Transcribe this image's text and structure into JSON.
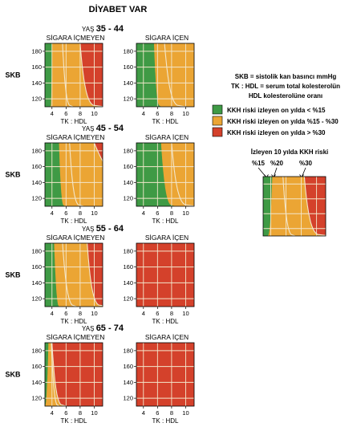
{
  "title": "DİYABET VAR",
  "age_prefix": "YAŞ",
  "smoking_labels": {
    "non_smoker": "SİGARA İÇMEYEN",
    "smoker": "SİGARA İÇEN"
  },
  "y_axis_label": "SKB",
  "x_axis_label": "TK : HDL",
  "notes": [
    "SKB = sistolik kan basıncı mmHg",
    "TK : HDL = serum total kolesterolün",
    "HDL kolesterolüne oranı"
  ],
  "legend": [
    {
      "label": "KKH riski izleyen on yılda < %15",
      "color": "#3f9a45"
    },
    {
      "label": "KKH riski izleyen on yılda  %15 - %30",
      "color": "#eba534"
    },
    {
      "label": "KKH riski izleyen on yılda > %30",
      "color": "#d4412b"
    }
  ],
  "example": {
    "title": "İzleyen 10 yılda KKH riski",
    "labels": [
      "%15",
      "%20",
      "%30"
    ]
  },
  "colors": {
    "low": "#3f9a45",
    "mid": "#eba534",
    "high": "#d4412b",
    "line": "#f3e7cc"
  },
  "chart_data": {
    "type": "heatmap",
    "x_ticks": [
      4,
      6,
      8,
      10
    ],
    "y_ticks": [
      120,
      140,
      160,
      180
    ],
    "xlim": [
      3,
      11.2
    ],
    "ylim": [
      110,
      190
    ],
    "age_groups": [
      {
        "label": "35 - 44",
        "non_smoker": {
          "t15": [
            4.0,
            3.8,
            2.5
          ],
          "t20": [
            5.5,
            7.0,
            3.6
          ],
          "t30": [
            8.0,
            11.5,
            5.0
          ]
        },
        "smoker": {
          "t15": [
            5.5,
            6.5,
            3.2
          ],
          "t20": [
            7.0,
            10.0,
            4.2
          ],
          "t30": [
            11.5,
            30.0,
            6.0
          ]
        }
      },
      {
        "label": "45 - 54",
        "non_smoker": {
          "t15": [
            5.0,
            5.8,
            3.0
          ],
          "t20": [
            6.5,
            8.5,
            4.0
          ],
          "t30": [
            10.0,
            30.0,
            5.5
          ]
        },
        "smoker": {
          "t15": [
            6.5,
            8.5,
            3.5
          ],
          "t20": [
            8.0,
            11.5,
            4.8
          ],
          "t30": [
            11.5,
            14.0,
            7.0
          ]
        }
      },
      {
        "label": "55 - 64",
        "non_smoker": {
          "t15": [
            4.3,
            5.0,
            2.2
          ],
          "t20": [
            5.5,
            7.5,
            3.3
          ],
          "t30": [
            9.0,
            12.0,
            4.8
          ]
        },
        "smoker": {
          "t15": [
            -5.0,
            -4.0,
            2.0
          ],
          "t20": [
            -5.0,
            -4.0,
            2.0
          ],
          "t30": [
            -5.0,
            -4.0,
            2.0
          ]
        }
      },
      {
        "label": "65 - 74",
        "non_smoker": {
          "t15": [
            3.5,
            3.0,
            2.2
          ],
          "t20": [
            3.9,
            5.0,
            3.0
          ],
          "t30": [
            4.0,
            6.0,
            3.8
          ]
        },
        "smoker": {
          "t15": [
            -5.0,
            -4.0,
            2.0
          ],
          "t20": [
            -5.0,
            -4.0,
            2.0
          ],
          "t30": [
            -5.0,
            -4.0,
            2.0
          ]
        }
      }
    ]
  }
}
